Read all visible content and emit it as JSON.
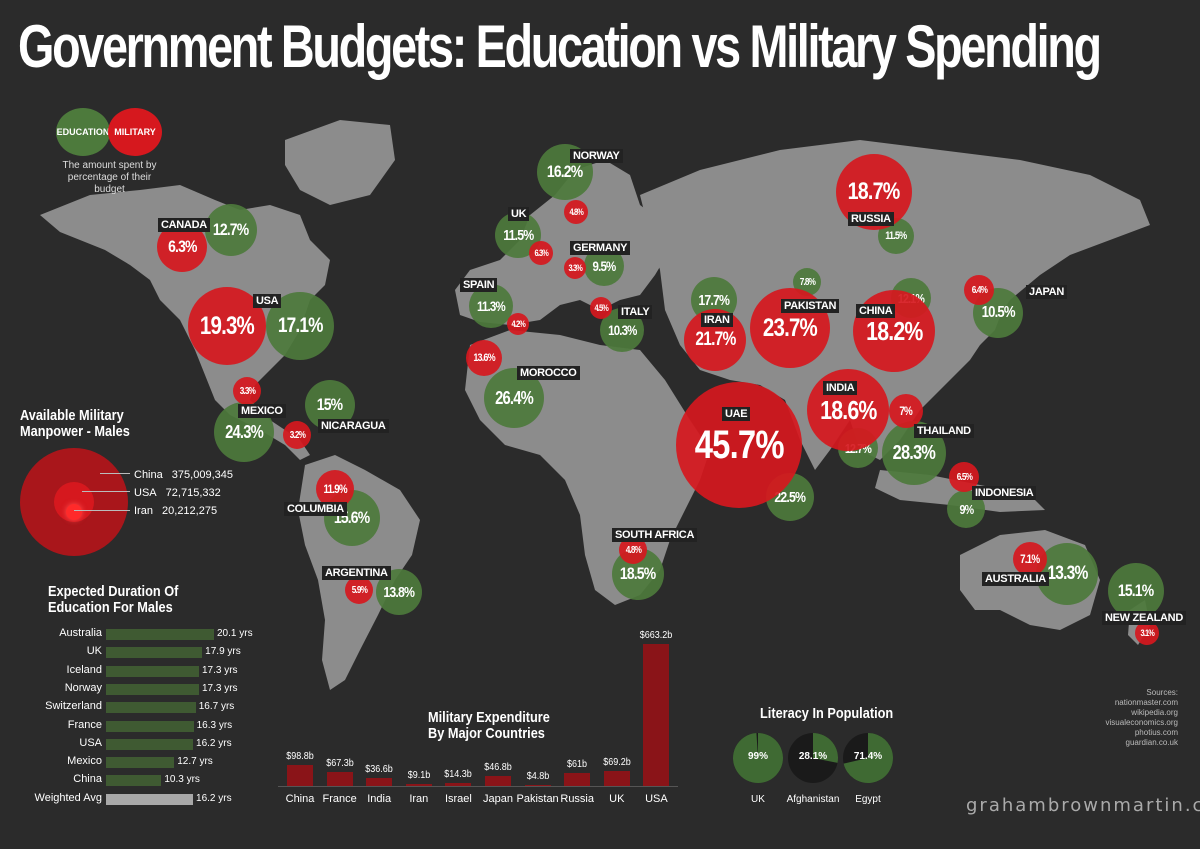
{
  "title": "Government Budgets: Education vs Military Spending",
  "legend": {
    "education": "EDUCATION",
    "military": "MILITARY",
    "note_line1": "The amount spent by",
    "note_line2": "percentage of their budget"
  },
  "colors": {
    "education": "#4d7a3c",
    "military": "#d6181e",
    "land": "#8c8c8c",
    "background": "#2b2b2b"
  },
  "countries": {
    "canada": {
      "name": "CANADA",
      "education": "12.7%",
      "military": "6.3%"
    },
    "usa": {
      "name": "USA",
      "education": "17.1%",
      "military": "19.3%"
    },
    "mexico": {
      "name": "MEXICO",
      "education": "24.3%",
      "military": "3.3%"
    },
    "nicaragua": {
      "name": "NICARAGUA",
      "education": "15%",
      "military": "3.2%"
    },
    "columbia": {
      "name": "COLUMBIA",
      "education": "15.6%",
      "military": "11.9%"
    },
    "argentina": {
      "name": "ARGENTINA",
      "education": "13.8%",
      "military": "5.9%"
    },
    "norway": {
      "name": "NORWAY",
      "education": "16.2%",
      "military": "4.8%"
    },
    "uk": {
      "name": "UK",
      "education": "11.5%",
      "military": "6.3%"
    },
    "germany": {
      "name": "GERMANY",
      "education": "9.5%",
      "military": "3.3%"
    },
    "spain": {
      "name": "SPAIN",
      "education": "11.3%",
      "military": "4.2%"
    },
    "italy": {
      "name": "ITALY",
      "education": "10.3%",
      "military": "4.5%"
    },
    "morocco": {
      "name": "MOROCCO",
      "education": "26.4%",
      "military": "13.6%"
    },
    "south_africa": {
      "name": "SOUTH AFRICA",
      "education": "18.5%",
      "military": "4.8%"
    },
    "iran": {
      "name": "IRAN",
      "education": "17.7%",
      "military": "21.7%"
    },
    "pakistan": {
      "name": "PAKISTAN",
      "education": "7.8%",
      "military": "23.7%"
    },
    "uae": {
      "name": "UAE",
      "education": "22.5%",
      "military": "45.7%"
    },
    "russia": {
      "name": "RUSSIA",
      "education": "11.5%",
      "military": "18.7%"
    },
    "china": {
      "name": "CHINA",
      "education": "12.1%",
      "military": "18.2%"
    },
    "japan": {
      "name": "JAPAN",
      "education": "10.5%",
      "military": "6.4%"
    },
    "india": {
      "name": "INDIA",
      "education": "12.7%",
      "military": "18.6%"
    },
    "thailand": {
      "name": "THAILAND",
      "education": "28.3%",
      "military": "7%"
    },
    "indonesia": {
      "name": "INDONESIA",
      "education": "9%",
      "military": "6.5%"
    },
    "australia": {
      "name": "AUSTRALIA",
      "education": "13.3%",
      "military": "7.1%"
    },
    "new_zealand": {
      "name": "NEW ZEALAND",
      "education": "15.1%",
      "military": "3.1%"
    }
  },
  "manpower": {
    "title_line1": "Available Military",
    "title_line2": "Manpower - Males",
    "items": [
      {
        "country": "China",
        "value": "375,009,345"
      },
      {
        "country": "USA",
        "value": "72,715,332"
      },
      {
        "country": "Iran",
        "value": "20,212,275"
      }
    ]
  },
  "duration": {
    "title_line1": "Expected Duration Of",
    "title_line2": "Education For Males",
    "rows": [
      {
        "country": "Australia",
        "years": 20.1,
        "label": "20.1 yrs"
      },
      {
        "country": "UK",
        "years": 17.9,
        "label": "17.9 yrs"
      },
      {
        "country": "Iceland",
        "years": 17.3,
        "label": "17.3 yrs"
      },
      {
        "country": "Norway",
        "years": 17.3,
        "label": "17.3 yrs"
      },
      {
        "country": "Switzerland",
        "years": 16.7,
        "label": "16.7 yrs"
      },
      {
        "country": "France",
        "years": 16.3,
        "label": "16.3 yrs"
      },
      {
        "country": "USA",
        "years": 16.2,
        "label": "16.2 yrs"
      },
      {
        "country": "Mexico",
        "years": 12.7,
        "label": "12.7 yrs"
      },
      {
        "country": "China",
        "years": 10.3,
        "label": "10.3 yrs"
      },
      {
        "country": "Weighted Avg",
        "years": 16.2,
        "label": "16.2 yrs"
      }
    ]
  },
  "chart_data": {
    "type": "bar",
    "title": "Military Expenditure By Major Countries",
    "categories": [
      "China",
      "France",
      "India",
      "Iran",
      "Israel",
      "Japan",
      "Pakistan",
      "Russia",
      "UK",
      "USA"
    ],
    "values": [
      98.8,
      67.3,
      36.6,
      9.1,
      14.3,
      46.8,
      4.8,
      61,
      69.2,
      663.2
    ],
    "labels": [
      "$98.8b",
      "$67.3b",
      "$36.6b",
      "$9.1b",
      "$14.3b",
      "$46.8b",
      "$4.8b",
      "$61b",
      "$69.2b",
      "$663.2b"
    ],
    "unit": "$b"
  },
  "military_chart": {
    "title_line1": "Military Expenditure",
    "title_line2": "By Major Countries"
  },
  "literacy": {
    "title": "Literacy In Population",
    "items": [
      {
        "country": "UK",
        "value": 99,
        "label": "99%"
      },
      {
        "country": "Afghanistan",
        "value": 28.1,
        "label": "28.1%"
      },
      {
        "country": "Egypt",
        "value": 71.4,
        "label": "71.4%"
      }
    ]
  },
  "sources": {
    "lines": [
      "Sources: nationmaster.com",
      "wikipedia.org",
      "visualeconomics.org",
      "photius.com",
      "guardian.co.uk"
    ]
  },
  "credit": "grahambrownmartin.com"
}
